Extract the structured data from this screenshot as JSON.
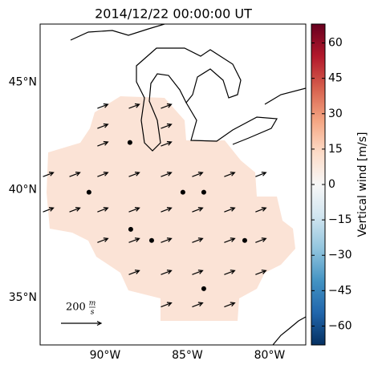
{
  "title": "2014/12/22 00:00:00 UT",
  "map": {
    "lonlim": [
      -93.95,
      -77.8
    ],
    "latlim": [
      32.8,
      47.7
    ],
    "lat_ticks": [
      {
        "value": 45,
        "label": "45°N"
      },
      {
        "value": 40,
        "label": "40°N"
      },
      {
        "value": 35,
        "label": "35°N"
      }
    ],
    "lon_ticks": [
      {
        "value": -90,
        "label": "90°W"
      },
      {
        "value": -85,
        "label": "85°W"
      },
      {
        "value": -80,
        "label": "80°W"
      }
    ],
    "vectors": [
      {
        "lat": 43.88,
        "lons": [
          -90.15,
          -88.24,
          -86.29
        ],
        "u": 52,
        "v": 20
      },
      {
        "lat": 42.95,
        "lons": [
          -90.15,
          -86.29
        ],
        "u": 52,
        "v": 20
      },
      {
        "lat": 42.13,
        "lons": [
          -90.15,
          -86.29
        ],
        "u": 52,
        "v": 20
      },
      {
        "lat": 40.71,
        "lons": [
          -93.46,
          -91.85,
          -90.15,
          -88.24,
          -86.29,
          -84.39,
          -82.44,
          -80.54
        ],
        "u": 52,
        "v": 20
      },
      {
        "lat": 39.07,
        "lons": [
          -93.46,
          -91.85,
          -90.15,
          -88.24,
          -86.29,
          -84.39,
          -82.44,
          -80.54
        ],
        "u": 52,
        "v": 20
      },
      {
        "lat": 37.65,
        "lons": [
          -90.15,
          -88.24,
          -86.29,
          -84.39,
          -82.44,
          -80.54
        ],
        "u": 52,
        "v": 20
      },
      {
        "lat": 36.16,
        "lons": [
          -88.24,
          -86.29,
          -84.39,
          -82.44,
          -80.54
        ],
        "u": 52,
        "v": 20
      },
      {
        "lat": 34.66,
        "lons": [
          -86.29,
          -84.39,
          -82.44
        ],
        "u": 52,
        "v": 20
      }
    ],
    "stations": [
      [
        -90.98,
        39.89
      ],
      [
        -88.49,
        42.2
      ],
      [
        -85.27,
        39.89
      ],
      [
        -84.0,
        39.89
      ],
      [
        -88.44,
        38.17
      ],
      [
        -87.17,
        37.65
      ],
      [
        -81.51,
        37.65
      ],
      [
        -84.0,
        35.41
      ]
    ],
    "scale": {
      "value": 200,
      "label": "200",
      "unit_num": "m",
      "unit_den": "s"
    }
  },
  "colorbar": {
    "label": "Vertical wind [m/s]",
    "vlim": [
      -68,
      68
    ],
    "ticks": [
      {
        "value": -60,
        "label": "−60"
      },
      {
        "value": -45,
        "label": "−45"
      },
      {
        "value": -30,
        "label": "−30"
      },
      {
        "value": -15,
        "label": "−15"
      },
      0,
      15,
      30,
      45,
      60
    ]
  }
}
